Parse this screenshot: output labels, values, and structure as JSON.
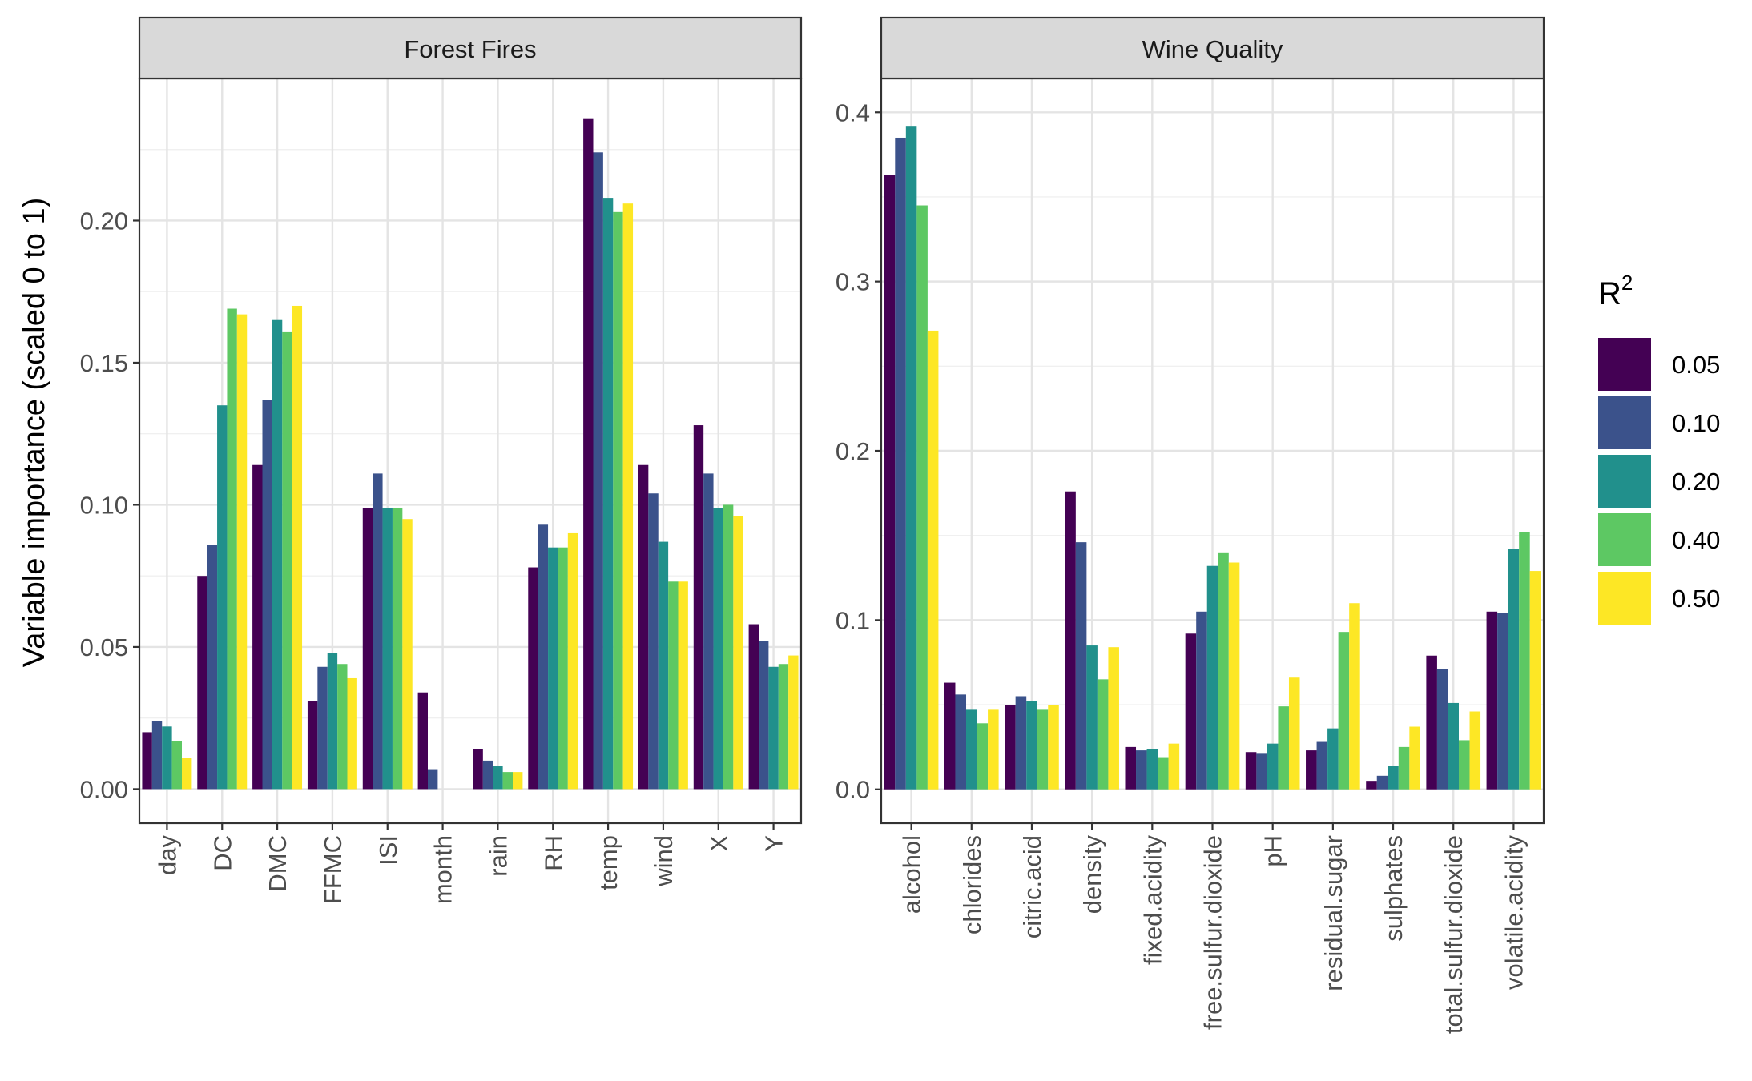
{
  "y_axis_title": "Variable importance (scaled 0 to 1)",
  "legend": {
    "title_base": "R",
    "title_sup": "2",
    "entries": [
      "0.05",
      "0.10",
      "0.20",
      "0.40",
      "0.50"
    ],
    "colors": [
      "#440154",
      "#3B528B",
      "#21908C",
      "#5DC863",
      "#FDE725"
    ]
  },
  "chart_data": [
    {
      "type": "bar",
      "title": "Forest Fires",
      "ylabel": "Variable importance (scaled 0 to 1)",
      "xlabel": "",
      "ylim": [
        -0.012,
        0.25
      ],
      "yticks": [
        0.0,
        0.05,
        0.1,
        0.15,
        0.2
      ],
      "ytick_labels": [
        "0.00",
        "0.05",
        "0.10",
        "0.15",
        "0.20"
      ],
      "categories": [
        "day",
        "DC",
        "DMC",
        "FFMC",
        "ISI",
        "month",
        "rain",
        "RH",
        "temp",
        "wind",
        "X",
        "Y"
      ],
      "series": [
        {
          "name": "0.05",
          "values": [
            0.02,
            0.075,
            0.114,
            0.031,
            0.099,
            0.034,
            0.014,
            0.078,
            0.236,
            0.114,
            0.128,
            0.058
          ]
        },
        {
          "name": "0.10",
          "values": [
            0.024,
            0.086,
            0.137,
            0.043,
            0.111,
            0.007,
            0.01,
            0.093,
            0.224,
            0.104,
            0.111,
            0.052
          ]
        },
        {
          "name": "0.20",
          "values": [
            0.022,
            0.135,
            0.165,
            0.048,
            0.099,
            0.0,
            0.008,
            0.085,
            0.208,
            0.087,
            0.099,
            0.043
          ]
        },
        {
          "name": "0.40",
          "values": [
            0.017,
            0.169,
            0.161,
            0.044,
            0.099,
            0.0,
            0.006,
            0.085,
            0.203,
            0.073,
            0.1,
            0.044
          ]
        },
        {
          "name": "0.50",
          "values": [
            0.011,
            0.167,
            0.17,
            0.039,
            0.095,
            0.0,
            0.006,
            0.09,
            0.206,
            0.073,
            0.096,
            0.047
          ]
        }
      ]
    },
    {
      "type": "bar",
      "title": "Wine Quality",
      "ylabel": "Variable importance (scaled 0 to 1)",
      "xlabel": "",
      "ylim": [
        -0.02,
        0.42
      ],
      "yticks": [
        0.0,
        0.1,
        0.2,
        0.3,
        0.4
      ],
      "ytick_labels": [
        "0.0",
        "0.1",
        "0.2",
        "0.3",
        "0.4"
      ],
      "categories": [
        "alcohol",
        "chlorides",
        "citric.acid",
        "density",
        "fixed.acidity",
        "free.sulfur.dioxide",
        "pH",
        "residual.sugar",
        "sulphates",
        "total.sulfur.dioxide",
        "volatile.acidity"
      ],
      "series": [
        {
          "name": "0.05",
          "values": [
            0.363,
            0.063,
            0.05,
            0.176,
            0.025,
            0.092,
            0.022,
            0.023,
            0.005,
            0.079,
            0.105
          ]
        },
        {
          "name": "0.10",
          "values": [
            0.385,
            0.056,
            0.055,
            0.146,
            0.023,
            0.105,
            0.021,
            0.028,
            0.008,
            0.071,
            0.104
          ]
        },
        {
          "name": "0.20",
          "values": [
            0.392,
            0.047,
            0.052,
            0.085,
            0.024,
            0.132,
            0.027,
            0.036,
            0.014,
            0.051,
            0.142
          ]
        },
        {
          "name": "0.40",
          "values": [
            0.345,
            0.039,
            0.047,
            0.065,
            0.019,
            0.14,
            0.049,
            0.093,
            0.025,
            0.029,
            0.152
          ]
        },
        {
          "name": "0.50",
          "values": [
            0.271,
            0.047,
            0.05,
            0.084,
            0.027,
            0.134,
            0.066,
            0.11,
            0.037,
            0.046,
            0.129
          ]
        }
      ]
    }
  ]
}
